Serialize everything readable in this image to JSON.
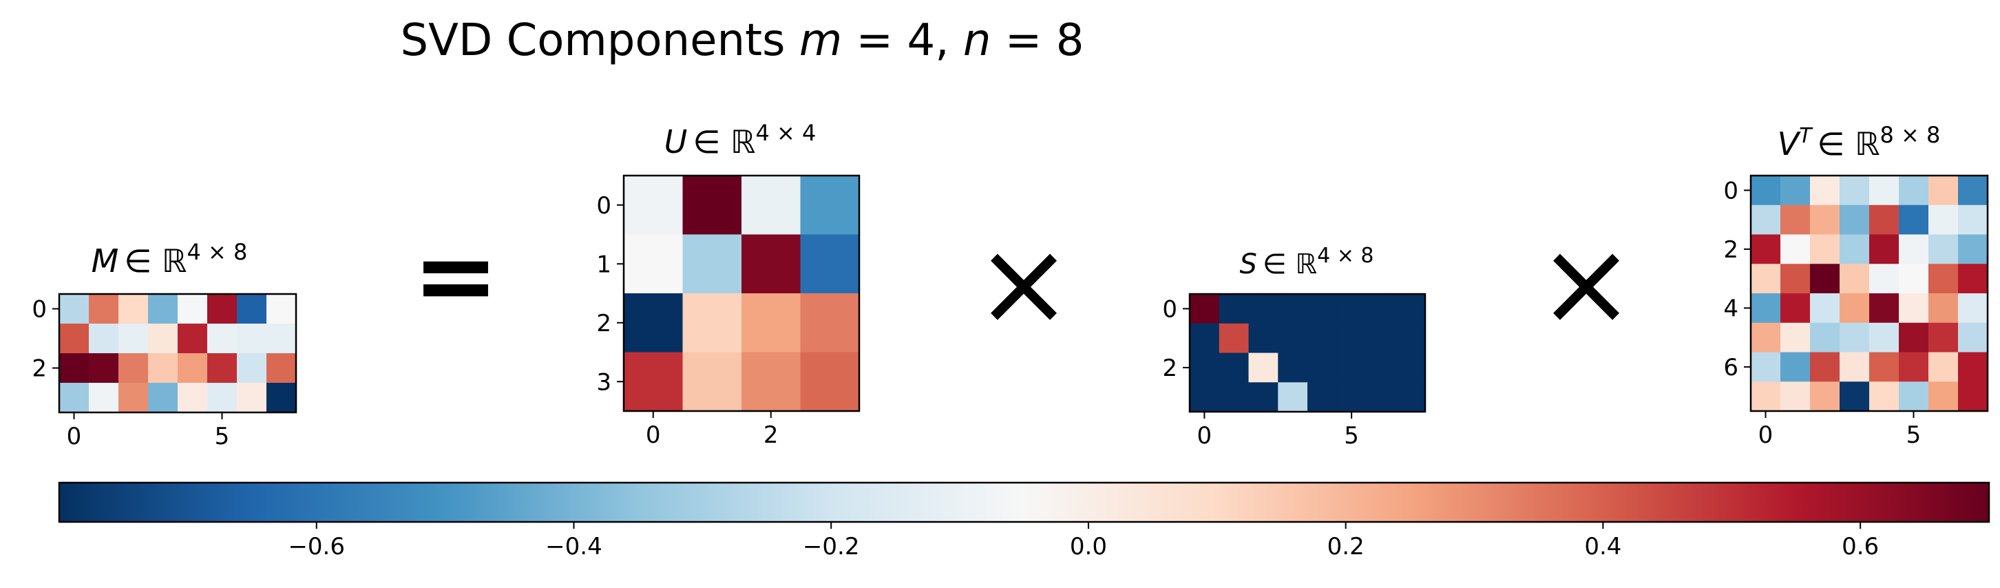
{
  "title": {
    "text_prefix": "SVD Components ",
    "m_var": "m",
    "m_val": " = 4, ",
    "n_var": "n",
    "n_val": " = 8"
  },
  "operators": {
    "equals": "=",
    "times_1": "×",
    "times_2": "×"
  },
  "chart_data": [
    {
      "type": "heatmap",
      "id": "M",
      "title": {
        "var": "M",
        "set": "∈ ℝ",
        "dims": "4 × 8"
      },
      "rows": 4,
      "cols": 8,
      "xticks": [
        0,
        5
      ],
      "yticks": [
        0,
        2
      ],
      "values": [
        [
          -0.26,
          0.35,
          0.1,
          -0.4,
          -0.06,
          0.58,
          -0.66,
          -0.05
        ],
        [
          0.42,
          -0.18,
          -0.12,
          0.04,
          0.53,
          -0.1,
          -0.12,
          -0.12
        ],
        [
          0.7,
          0.68,
          0.34,
          0.15,
          0.26,
          0.5,
          -0.2,
          0.38
        ],
        [
          -0.32,
          -0.08,
          0.3,
          -0.4,
          0.02,
          -0.14,
          0.02,
          -0.8
        ]
      ]
    },
    {
      "type": "heatmap",
      "id": "U",
      "title": {
        "var": "U",
        "set": "∈ ℝ",
        "dims": "4 × 4"
      },
      "rows": 4,
      "cols": 4,
      "xticks": [
        0,
        2
      ],
      "yticks": [
        0,
        1,
        2,
        3
      ],
      "values": [
        [
          -0.08,
          0.7,
          -0.1,
          -0.48
        ],
        [
          -0.05,
          -0.3,
          0.65,
          -0.62
        ],
        [
          -0.8,
          0.12,
          0.25,
          0.34
        ],
        [
          0.5,
          0.16,
          0.3,
          0.38
        ]
      ]
    },
    {
      "type": "heatmap",
      "id": "S",
      "title": {
        "var": "S",
        "set": "∈ ℝ",
        "dims": "4 × 8"
      },
      "rows": 4,
      "cols": 8,
      "xticks": [
        0,
        5
      ],
      "yticks": [
        0,
        2
      ],
      "values": [
        [
          0.7,
          -0.8,
          -0.8,
          -0.8,
          -0.8,
          -0.8,
          -0.8,
          -0.8
        ],
        [
          -0.8,
          0.45,
          -0.8,
          -0.8,
          -0.8,
          -0.8,
          -0.8,
          -0.8
        ],
        [
          -0.8,
          -0.8,
          0.03,
          -0.8,
          -0.8,
          -0.8,
          -0.8,
          -0.8
        ],
        [
          -0.8,
          -0.8,
          -0.8,
          -0.25,
          -0.8,
          -0.8,
          -0.8,
          -0.8
        ]
      ]
    },
    {
      "type": "heatmap",
      "id": "VT",
      "title": {
        "var": "V",
        "sup": "T",
        "set": "∈ ℝ",
        "dims": "8 × 8"
      },
      "rows": 8,
      "cols": 8,
      "xticks": [
        0,
        5
      ],
      "yticks": [
        0,
        2,
        4,
        6
      ],
      "values": [
        [
          -0.5,
          -0.45,
          0.02,
          -0.25,
          -0.1,
          -0.3,
          0.15,
          -0.55
        ],
        [
          -0.25,
          0.35,
          0.22,
          -0.4,
          0.45,
          -0.6,
          -0.1,
          -0.2
        ],
        [
          0.55,
          -0.05,
          0.12,
          -0.3,
          0.58,
          -0.08,
          -0.25,
          -0.4
        ],
        [
          0.12,
          0.42,
          0.72,
          0.15,
          -0.08,
          -0.05,
          0.4,
          0.55
        ],
        [
          -0.45,
          0.55,
          -0.2,
          0.25,
          0.65,
          0.02,
          0.28,
          -0.15
        ],
        [
          0.22,
          0.03,
          -0.3,
          -0.25,
          -0.2,
          0.6,
          0.5,
          -0.25
        ],
        [
          -0.25,
          -0.45,
          0.45,
          0.05,
          0.4,
          0.5,
          0.12,
          0.55
        ],
        [
          0.12,
          0.05,
          0.22,
          -0.78,
          0.1,
          -0.3,
          0.25,
          0.55
        ]
      ]
    },
    {
      "type": "colorbar",
      "id": "colorbar",
      "cmap": "RdBu_r",
      "range": [
        -0.8,
        0.7
      ],
      "ticks": [
        -0.6,
        -0.4,
        -0.2,
        0.0,
        0.2,
        0.4,
        0.6
      ],
      "tick_labels": [
        "−0.6",
        "−0.4",
        "−0.2",
        "0.0",
        "0.2",
        "0.4",
        "0.6"
      ]
    }
  ],
  "colors": {
    "cmap_stops": [
      "#053061",
      "#2166ac",
      "#4393c3",
      "#92c5de",
      "#d1e5f0",
      "#f7f7f7",
      "#fddbc7",
      "#f4a582",
      "#d6604d",
      "#b2182b",
      "#67001f"
    ]
  }
}
